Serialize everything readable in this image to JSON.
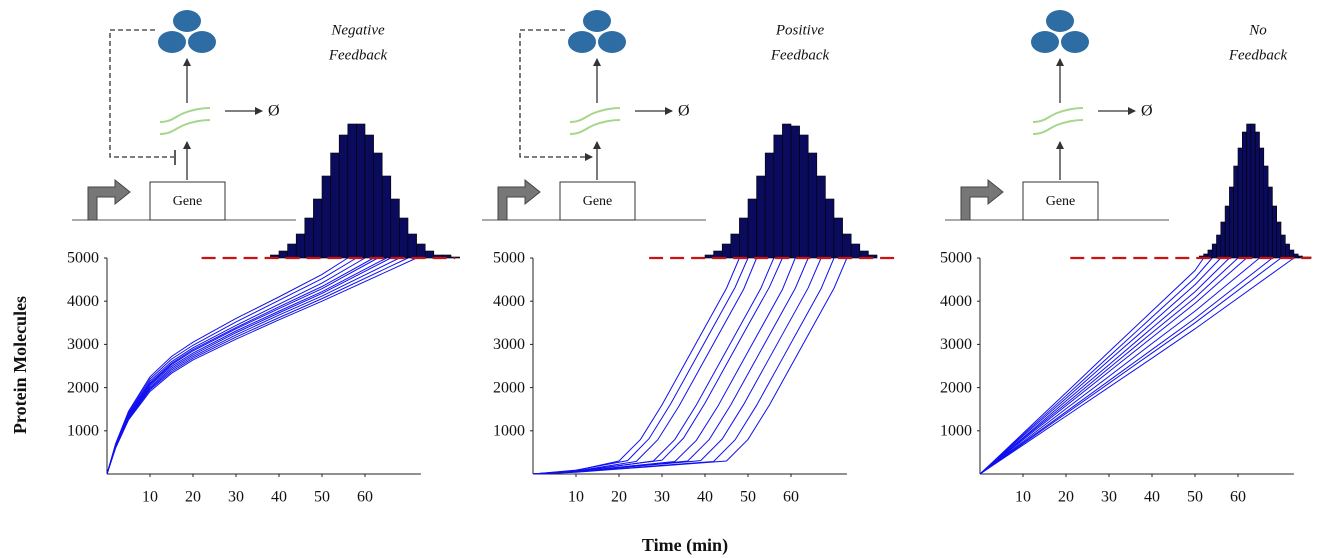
{
  "chart_data": [
    {
      "type": "line",
      "title": [
        "Negative",
        "Feedback"
      ],
      "ylabel": "Protein Molecules",
      "xlim": [
        0,
        73
      ],
      "ylim": [
        0,
        5000
      ],
      "xticks": [
        10,
        20,
        30,
        40,
        50,
        60
      ],
      "yticks": [
        1000,
        2000,
        3000,
        4000,
        5000
      ],
      "line_color": "#1010ee",
      "diagram": {
        "gene": "Gene",
        "degradation": "Ø",
        "feedback": "negative"
      },
      "threshold": {
        "value": 5000,
        "x_range": [
          22,
          81
        ],
        "color": "#cc1111"
      },
      "histogram": {
        "color": "#0b0b5e",
        "bins": [
          38,
          40,
          42,
          44,
          46,
          48,
          50,
          52,
          54,
          56,
          58,
          60,
          62,
          64,
          66,
          68,
          70,
          72,
          74,
          76,
          78,
          80,
          82
        ],
        "counts": [
          3,
          7,
          14,
          24,
          40,
          59,
          82,
          105,
          123,
          134,
          134,
          123,
          105,
          82,
          59,
          40,
          24,
          14,
          7,
          3,
          3,
          1
        ]
      },
      "series": [
        {
          "x": [
            0,
            2,
            5,
            10,
            15,
            20,
            30,
            40,
            50,
            56
          ],
          "values": [
            0,
            700,
            1450,
            2250,
            2720,
            3050,
            3600,
            4100,
            4620,
            5000
          ]
        },
        {
          "x": [
            0,
            2,
            5,
            10,
            15,
            20,
            30,
            40,
            50,
            58
          ],
          "values": [
            0,
            690,
            1420,
            2200,
            2660,
            2980,
            3520,
            4020,
            4520,
            5000
          ]
        },
        {
          "x": [
            0,
            2,
            5,
            10,
            15,
            20,
            30,
            40,
            50,
            60
          ],
          "values": [
            0,
            670,
            1390,
            2150,
            2600,
            2920,
            3440,
            3930,
            4420,
            5000
          ]
        },
        {
          "x": [
            0,
            2,
            5,
            10,
            15,
            20,
            30,
            40,
            50,
            62
          ],
          "values": [
            0,
            660,
            1370,
            2110,
            2560,
            2880,
            3390,
            3870,
            4340,
            5000
          ]
        },
        {
          "x": [
            0,
            2,
            5,
            10,
            15,
            20,
            30,
            40,
            50,
            63
          ],
          "values": [
            0,
            650,
            1350,
            2080,
            2530,
            2850,
            3360,
            3830,
            4290,
            5000
          ]
        },
        {
          "x": [
            0,
            2,
            5,
            10,
            15,
            20,
            30,
            40,
            50,
            65
          ],
          "values": [
            0,
            640,
            1330,
            2050,
            2490,
            2800,
            3310,
            3770,
            4220,
            5000
          ]
        },
        {
          "x": [
            0,
            2,
            5,
            10,
            15,
            20,
            30,
            40,
            50,
            66
          ],
          "values": [
            0,
            630,
            1310,
            2010,
            2450,
            2760,
            3270,
            3730,
            4180,
            5000
          ]
        },
        {
          "x": [
            0,
            2,
            5,
            10,
            15,
            20,
            30,
            40,
            50,
            68
          ],
          "values": [
            0,
            620,
            1290,
            1980,
            2410,
            2720,
            3220,
            3680,
            4120,
            5000
          ]
        },
        {
          "x": [
            0,
            2,
            5,
            10,
            15,
            20,
            30,
            40,
            50,
            70
          ],
          "values": [
            0,
            610,
            1270,
            1950,
            2370,
            2680,
            3170,
            3620,
            4060,
            5000
          ]
        },
        {
          "x": [
            0,
            2,
            5,
            10,
            15,
            20,
            30,
            40,
            50,
            72
          ],
          "values": [
            0,
            600,
            1250,
            1910,
            2330,
            2640,
            3120,
            3570,
            4000,
            5000
          ]
        }
      ]
    },
    {
      "type": "line",
      "title": [
        "Positive",
        "Feedback"
      ],
      "xlabel": "Time (min)",
      "xlim": [
        0,
        73
      ],
      "ylim": [
        0,
        5000
      ],
      "xticks": [
        10,
        20,
        30,
        40,
        50,
        60
      ],
      "yticks": [
        1000,
        2000,
        3000,
        4000,
        5000
      ],
      "line_color": "#1010ee",
      "diagram": {
        "gene": "Gene",
        "degradation": "Ø",
        "feedback": "positive"
      },
      "threshold": {
        "value": 5000,
        "x_range": [
          27,
          84
        ],
        "color": "#cc1111"
      },
      "histogram": {
        "color": "#0b0b5e",
        "bins": [
          40,
          42,
          44,
          46,
          48,
          50,
          52,
          54,
          56,
          58,
          60,
          62,
          64,
          66,
          68,
          70,
          72,
          74,
          76,
          78,
          80
        ],
        "counts": [
          3,
          7,
          14,
          24,
          40,
          59,
          82,
          105,
          123,
          134,
          132,
          123,
          105,
          82,
          59,
          40,
          24,
          14,
          7,
          3
        ]
      },
      "series": [
        {
          "x": [
            0,
            10,
            20,
            25,
            30,
            35,
            40,
            45,
            48
          ],
          "values": [
            0,
            80,
            300,
            800,
            1600,
            2500,
            3400,
            4300,
            5000
          ]
        },
        {
          "x": [
            0,
            10,
            22,
            27,
            32,
            37,
            42,
            47,
            50
          ],
          "values": [
            0,
            90,
            310,
            820,
            1620,
            2520,
            3420,
            4320,
            5000
          ]
        },
        {
          "x": [
            0,
            10,
            24,
            29,
            34,
            39,
            44,
            49,
            52
          ],
          "values": [
            0,
            70,
            290,
            790,
            1580,
            2480,
            3380,
            4280,
            5000
          ]
        },
        {
          "x": [
            0,
            10,
            28,
            33,
            38,
            43,
            48,
            53,
            56
          ],
          "values": [
            0,
            60,
            300,
            800,
            1600,
            2500,
            3400,
            4300,
            5000
          ]
        },
        {
          "x": [
            0,
            10,
            30,
            35,
            40,
            45,
            50,
            55,
            58
          ],
          "values": [
            0,
            70,
            320,
            830,
            1640,
            2540,
            3440,
            4330,
            5000
          ]
        },
        {
          "x": [
            0,
            10,
            33,
            38,
            43,
            48,
            53,
            58,
            61
          ],
          "values": [
            0,
            60,
            290,
            780,
            1570,
            2470,
            3370,
            4270,
            5000
          ]
        },
        {
          "x": [
            0,
            10,
            36,
            41,
            46,
            51,
            56,
            61,
            64
          ],
          "values": [
            0,
            50,
            300,
            800,
            1600,
            2500,
            3400,
            4300,
            5000
          ]
        },
        {
          "x": [
            0,
            10,
            39,
            44,
            49,
            54,
            59,
            64,
            67
          ],
          "values": [
            0,
            60,
            310,
            810,
            1610,
            2510,
            3410,
            4310,
            5000
          ]
        },
        {
          "x": [
            0,
            10,
            42,
            47,
            52,
            57,
            62,
            67,
            70
          ],
          "values": [
            0,
            50,
            290,
            790,
            1590,
            2490,
            3390,
            4290,
            5000
          ]
        },
        {
          "x": [
            0,
            10,
            45,
            50,
            55,
            60,
            65,
            70,
            73
          ],
          "values": [
            0,
            40,
            300,
            800,
            1600,
            2500,
            3400,
            4300,
            5000
          ]
        }
      ]
    },
    {
      "type": "line",
      "title": [
        "No",
        "Feedback"
      ],
      "xlim": [
        0,
        73
      ],
      "ylim": [
        0,
        5000
      ],
      "xticks": [
        10,
        20,
        30,
        40,
        50,
        60
      ],
      "yticks": [
        1000,
        2000,
        3000,
        4000,
        5000
      ],
      "line_color": "#1010ee",
      "diagram": {
        "gene": "Gene",
        "degradation": "Ø",
        "feedback": "none"
      },
      "threshold": {
        "value": 5000,
        "x_range": [
          21,
          77
        ],
        "color": "#cc1111"
      },
      "histogram": {
        "color": "#0b0b5e",
        "bins": [
          51,
          52,
          53,
          54,
          55,
          56,
          57,
          58,
          59,
          60,
          61,
          62,
          63,
          64,
          65,
          66,
          67,
          68,
          69,
          70,
          71,
          72,
          73,
          74,
          75,
          76,
          77
        ],
        "counts": [
          2,
          4,
          8,
          14,
          23,
          36,
          52,
          71,
          92,
          110,
          126,
          134,
          134,
          126,
          110,
          92,
          71,
          52,
          36,
          23,
          14,
          8,
          4,
          2,
          1,
          1
        ]
      },
      "series": [
        {
          "x": [
            0,
            3,
            10,
            20,
            30,
            40,
            50,
            52
          ],
          "values": [
            0,
            280,
            940,
            1880,
            2830,
            3770,
            4710,
            5000
          ]
        },
        {
          "x": [
            0,
            3,
            10,
            20,
            30,
            40,
            50,
            54
          ],
          "values": [
            0,
            270,
            910,
            1810,
            2720,
            3630,
            4540,
            5000
          ]
        },
        {
          "x": [
            0,
            3,
            10,
            20,
            30,
            40,
            50,
            56
          ],
          "values": [
            0,
            260,
            880,
            1750,
            2630,
            3500,
            4380,
            5000
          ]
        },
        {
          "x": [
            0,
            3,
            10,
            20,
            30,
            40,
            50,
            58
          ],
          "values": [
            0,
            250,
            840,
            1690,
            2530,
            3380,
            4220,
            5000
          ]
        },
        {
          "x": [
            0,
            3,
            10,
            20,
            30,
            40,
            50,
            60
          ],
          "values": [
            0,
            245,
            820,
            1630,
            2450,
            3270,
            4080,
            5000
          ]
        },
        {
          "x": [
            0,
            3,
            10,
            20,
            30,
            40,
            50,
            62
          ],
          "values": [
            0,
            235,
            790,
            1580,
            2370,
            3160,
            3950,
            5000
          ]
        },
        {
          "x": [
            0,
            3,
            10,
            20,
            30,
            40,
            50,
            65
          ],
          "values": [
            0,
            225,
            750,
            1510,
            2260,
            3020,
            3770,
            5000
          ]
        },
        {
          "x": [
            0,
            3,
            10,
            20,
            30,
            40,
            50,
            68
          ],
          "values": [
            0,
            215,
            720,
            1440,
            2160,
            2880,
            3600,
            5000
          ]
        },
        {
          "x": [
            0,
            3,
            10,
            20,
            30,
            40,
            50,
            70
          ],
          "values": [
            0,
            210,
            700,
            1400,
            2100,
            2800,
            3500,
            5000
          ]
        },
        {
          "x": [
            0,
            3,
            10,
            20,
            30,
            40,
            50,
            73
          ],
          "values": [
            0,
            200,
            670,
            1340,
            2010,
            2680,
            3360,
            5000
          ]
        }
      ]
    }
  ]
}
